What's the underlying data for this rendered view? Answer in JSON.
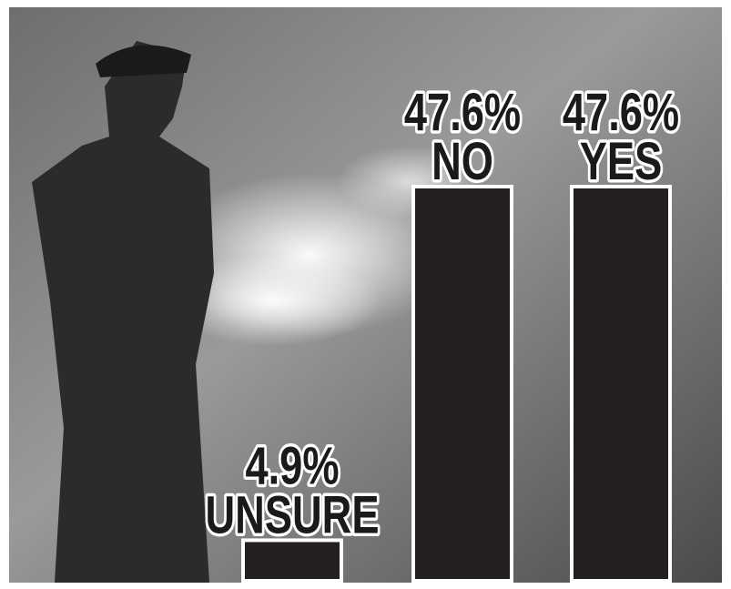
{
  "chart_data": {
    "type": "bar",
    "categories": [
      "UNSURE",
      "NO",
      "YES"
    ],
    "values": [
      4.9,
      47.6,
      47.6
    ],
    "value_labels": [
      "4.9%",
      "47.6%",
      "47.6%"
    ],
    "color": "#231f20"
  }
}
